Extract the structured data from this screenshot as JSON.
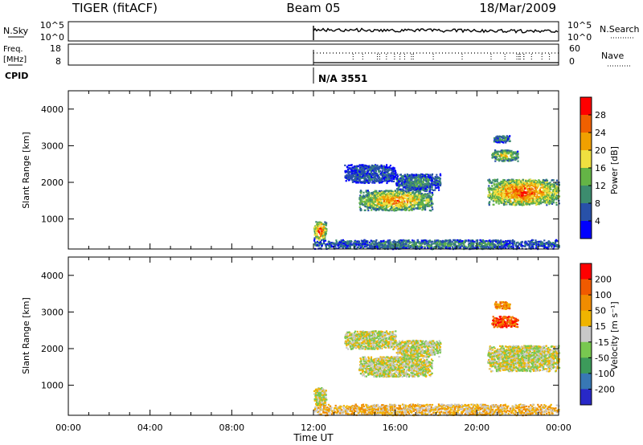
{
  "header": {
    "radar": "TIGER (fitACF)",
    "beam": "Beam 05",
    "date": "18/Mar/2009"
  },
  "top_panels": {
    "nsky_label": "N.Sky",
    "nsky_ticks": [
      "10^5",
      "10^0"
    ],
    "nsearch_label": "N.Search",
    "nsearch_ticks": [
      "10^5",
      "10^0"
    ],
    "freq_label_1": "Freq.",
    "freq_label_2": "[MHz]",
    "freq_ticks": [
      "18",
      "8"
    ],
    "nave_label": "Nave",
    "nave_ticks": [
      "60",
      "0"
    ],
    "cpid_label": "CPID",
    "cpid_value": "N/A 3551"
  },
  "colors": {
    "power": [
      "#0000ff",
      "#2851a8",
      "#3c8c6e",
      "#64b446",
      "#f0e040",
      "#f0a000",
      "#f06000",
      "#ff0000"
    ],
    "velocity": [
      "#2828c8",
      "#3878b4",
      "#3c9a5a",
      "#78c850",
      "#c8c8c8",
      "#f0b400",
      "#f08c00",
      "#f05a00",
      "#ff0000"
    ]
  },
  "chart_data": [
    {
      "type": "heatmap",
      "name": "power",
      "ylabel": "Slant Range [km]",
      "yticks": [
        1000,
        2000,
        3000,
        4000
      ],
      "ylim": [
        180,
        4500
      ],
      "xlim": [
        0,
        24
      ],
      "colorbar_label": "Power [dB]",
      "colorbar_ticks": [
        "4",
        "8",
        "12",
        "16",
        "20",
        "24",
        "28"
      ],
      "features": [
        {
          "t": [
            12.0,
            12.6
          ],
          "range": [
            450,
            950
          ],
          "level": 6
        },
        {
          "t": [
            12.0,
            24.0
          ],
          "range": [
            200,
            450
          ],
          "level": 2
        },
        {
          "t": [
            13.5,
            16.0
          ],
          "range": [
            2000,
            2500
          ],
          "level": 1
        },
        {
          "t": [
            14.2,
            17.8
          ],
          "range": [
            1250,
            1800
          ],
          "level": 5
        },
        {
          "t": [
            16.0,
            18.2
          ],
          "range": [
            1800,
            2250
          ],
          "level": 2
        },
        {
          "t": [
            20.5,
            24.0
          ],
          "range": [
            1400,
            2100
          ],
          "level": 6
        },
        {
          "t": [
            20.7,
            22.0
          ],
          "range": [
            2600,
            2900
          ],
          "level": 4
        },
        {
          "t": [
            20.8,
            21.6
          ],
          "range": [
            3100,
            3300
          ],
          "level": 2
        }
      ]
    },
    {
      "type": "heatmap",
      "name": "velocity",
      "ylabel": "Slant Range [km]",
      "yticks": [
        1000,
        2000,
        3000,
        4000
      ],
      "ylim": [
        180,
        4500
      ],
      "xlim": [
        0,
        24
      ],
      "xlabel": "Time UT",
      "xticks": [
        "00:00",
        "04:00",
        "08:00",
        "12:00",
        "16:00",
        "20:00",
        "00:00"
      ],
      "colorbar_label": "Velocity [m s⁻¹]",
      "colorbar_ticks": [
        "200",
        "100",
        "50",
        "15",
        "-15",
        "-50",
        "-100",
        "-200"
      ],
      "features": [
        {
          "t": [
            12.0,
            12.6
          ],
          "range": [
            450,
            950
          ],
          "level": 4
        },
        {
          "t": [
            12.0,
            24.0
          ],
          "range": [
            200,
            500
          ],
          "level": 5
        },
        {
          "t": [
            13.5,
            16.0
          ],
          "range": [
            2000,
            2500
          ],
          "level": 4
        },
        {
          "t": [
            14.2,
            17.8
          ],
          "range": [
            1250,
            1800
          ],
          "level": 4
        },
        {
          "t": [
            16.0,
            18.2
          ],
          "range": [
            1800,
            2250
          ],
          "level": 4
        },
        {
          "t": [
            20.5,
            24.0
          ],
          "range": [
            1400,
            2100
          ],
          "level": 4
        },
        {
          "t": [
            20.7,
            22.0
          ],
          "range": [
            2600,
            2900
          ],
          "level": 7
        },
        {
          "t": [
            20.8,
            21.6
          ],
          "range": [
            3100,
            3300
          ],
          "level": 6
        }
      ]
    }
  ]
}
